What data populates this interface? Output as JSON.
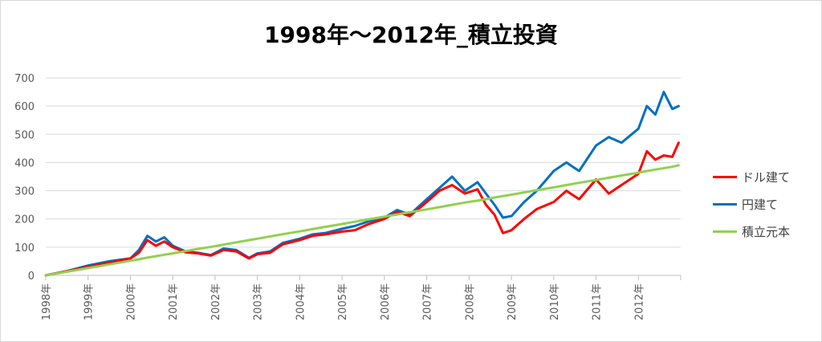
{
  "chart_data": {
    "type": "line",
    "title": "1998年～2012年_積立投資",
    "xlabel": "",
    "ylabel": "",
    "ylim": [
      0,
      700
    ],
    "yticks": [
      0,
      100,
      200,
      300,
      400,
      500,
      600,
      700
    ],
    "grid": true,
    "legend_position": "right",
    "categories": [
      "1998年",
      "1999年",
      "2000年",
      "2001年",
      "2002年",
      "2003年",
      "2004年",
      "2005年",
      "2006年",
      "2007年",
      "2008年",
      "2009年",
      "2010年",
      "2011年",
      "2012年"
    ],
    "x": [
      1998.0,
      1998.5,
      1999.0,
      1999.5,
      2000.0,
      2000.2,
      2000.4,
      2000.6,
      2000.8,
      2001.0,
      2001.3,
      2001.6,
      2001.9,
      2002.2,
      2002.5,
      2002.8,
      2003.0,
      2003.3,
      2003.6,
      2004.0,
      2004.3,
      2004.6,
      2005.0,
      2005.3,
      2005.6,
      2006.0,
      2006.3,
      2006.6,
      2007.0,
      2007.3,
      2007.6,
      2007.9,
      2008.2,
      2008.4,
      2008.6,
      2008.8,
      2009.0,
      2009.3,
      2009.6,
      2010.0,
      2010.3,
      2010.6,
      2011.0,
      2011.3,
      2011.6,
      2012.0,
      2012.2,
      2012.4,
      2012.6,
      2012.8,
      2012.95
    ],
    "series": [
      {
        "name": "ドル建て",
        "color": "#ff0000",
        "values": [
          0,
          15,
          30,
          45,
          60,
          80,
          125,
          105,
          120,
          100,
          82,
          78,
          70,
          90,
          85,
          60,
          75,
          80,
          110,
          125,
          140,
          145,
          155,
          160,
          180,
          200,
          225,
          210,
          260,
          300,
          320,
          290,
          305,
          250,
          215,
          150,
          160,
          200,
          235,
          260,
          300,
          270,
          340,
          290,
          320,
          360,
          440,
          410,
          425,
          420,
          470
        ]
      },
      {
        "name": "円建て",
        "color": "#0070c0",
        "values": [
          0,
          15,
          35,
          50,
          60,
          90,
          140,
          120,
          135,
          105,
          85,
          80,
          72,
          95,
          90,
          62,
          78,
          85,
          115,
          130,
          145,
          150,
          165,
          175,
          190,
          205,
          232,
          215,
          270,
          310,
          350,
          300,
          330,
          290,
          250,
          205,
          210,
          260,
          300,
          370,
          400,
          370,
          460,
          490,
          470,
          520,
          600,
          570,
          650,
          590,
          600
        ]
      },
      {
        "name": "積立元本",
        "color": "#92d050",
        "values": [
          0,
          13,
          26,
          39,
          52,
          57,
          63,
          68,
          73,
          78,
          86,
          94,
          101,
          109,
          117,
          125,
          130,
          138,
          146,
          156,
          164,
          172,
          182,
          190,
          198,
          208,
          216,
          224,
          234,
          242,
          250,
          258,
          265,
          270,
          276,
          281,
          286,
          294,
          302,
          312,
          320,
          328,
          338,
          346,
          354,
          364,
          370,
          375,
          380,
          385,
          390
        ]
      }
    ]
  }
}
